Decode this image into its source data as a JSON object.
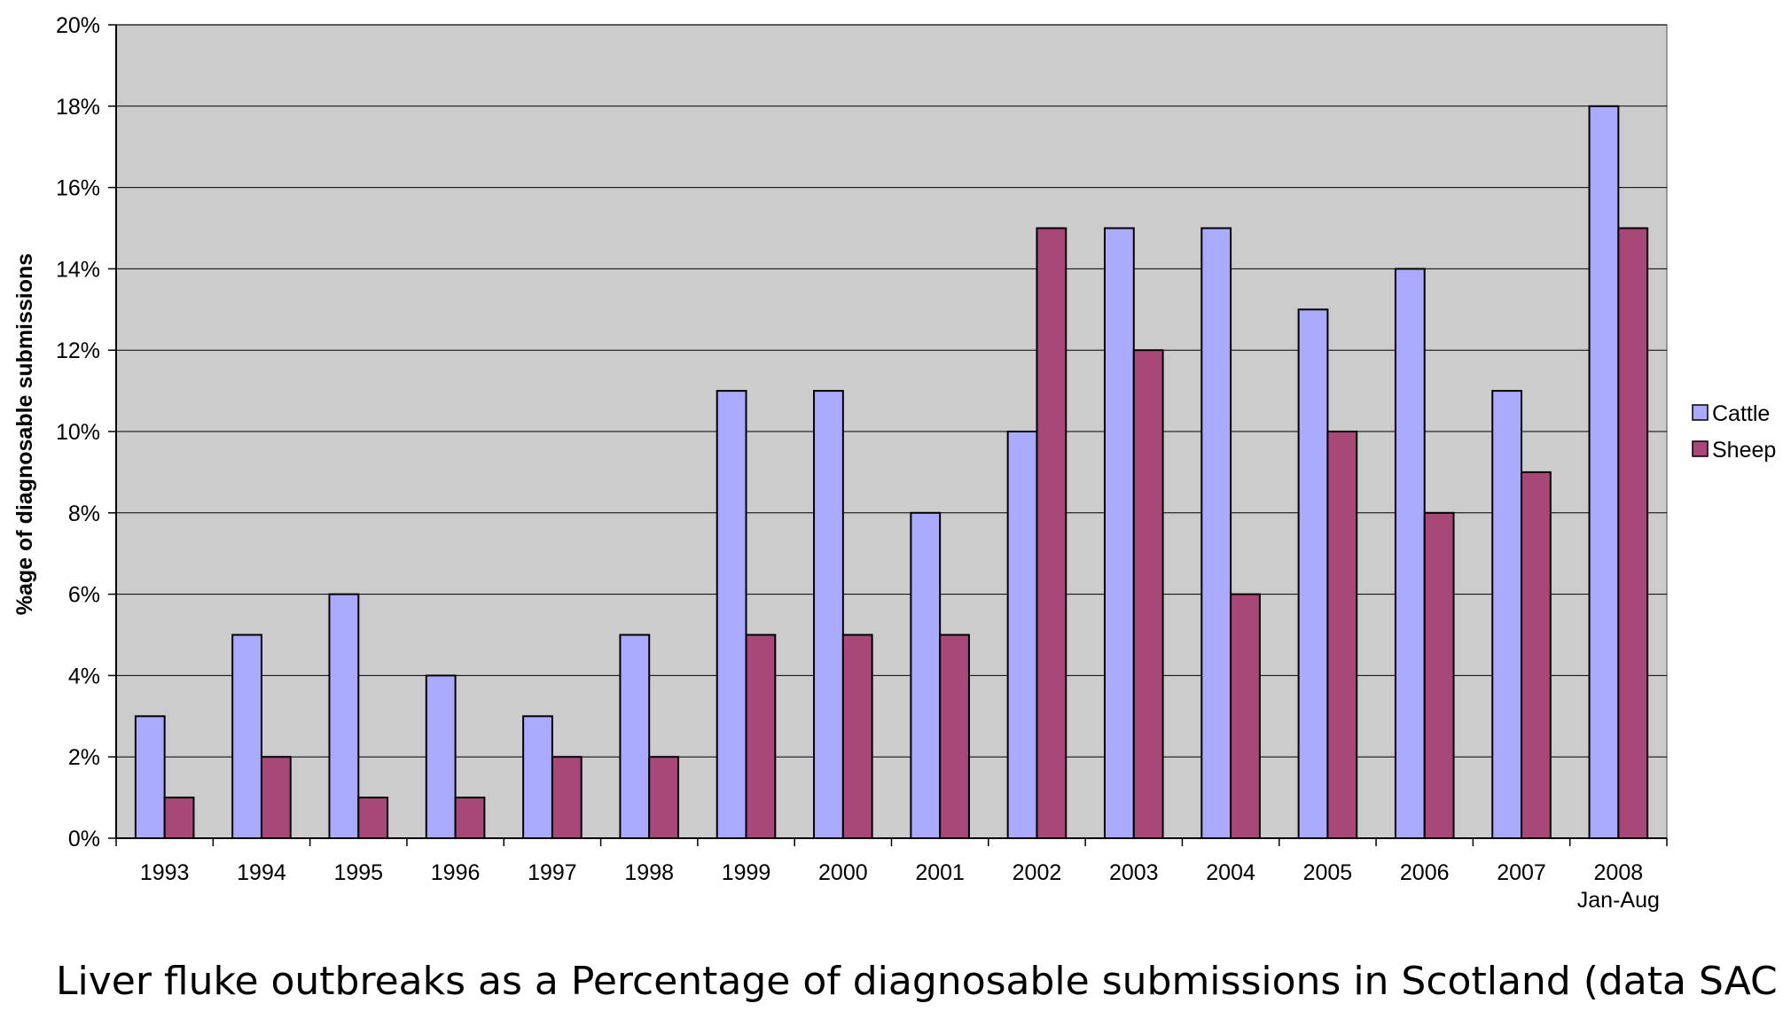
{
  "chart_data": {
    "type": "bar",
    "title": "Liver fluke outbreaks as a Percentage of diagnosable submissions in Scotland (data SAC VIS)",
    "xlabel": "",
    "ylabel": "%age of diagnosable submissions",
    "categories": [
      "1993",
      "1994",
      "1995",
      "1996",
      "1997",
      "1998",
      "1999",
      "2000",
      "2001",
      "2002",
      "2003",
      "2004",
      "2005",
      "2006",
      "2007",
      "2008"
    ],
    "category_sublabels": [
      "",
      "",
      "",
      "",
      "",
      "",
      "",
      "",
      "",
      "",
      "",
      "",
      "",
      "",
      "",
      "Jan-Aug"
    ],
    "series": [
      {
        "name": "Cattle",
        "color": "#aaaaff",
        "values": [
          3,
          5,
          6,
          4,
          3,
          5,
          11,
          11,
          8,
          10,
          15,
          15,
          13,
          14,
          11,
          18
        ]
      },
      {
        "name": "Sheep",
        "color": "#a84878",
        "values": [
          1,
          2,
          1,
          1,
          2,
          2,
          5,
          5,
          5,
          15,
          12,
          6,
          10,
          8,
          9,
          15
        ]
      }
    ],
    "ylim": [
      0,
      20
    ],
    "yticks": [
      0,
      2,
      4,
      6,
      8,
      10,
      12,
      14,
      16,
      18,
      20
    ],
    "ytick_suffix": "%",
    "grid": true,
    "plot_background": "#cccccc",
    "legend_position": "right"
  }
}
